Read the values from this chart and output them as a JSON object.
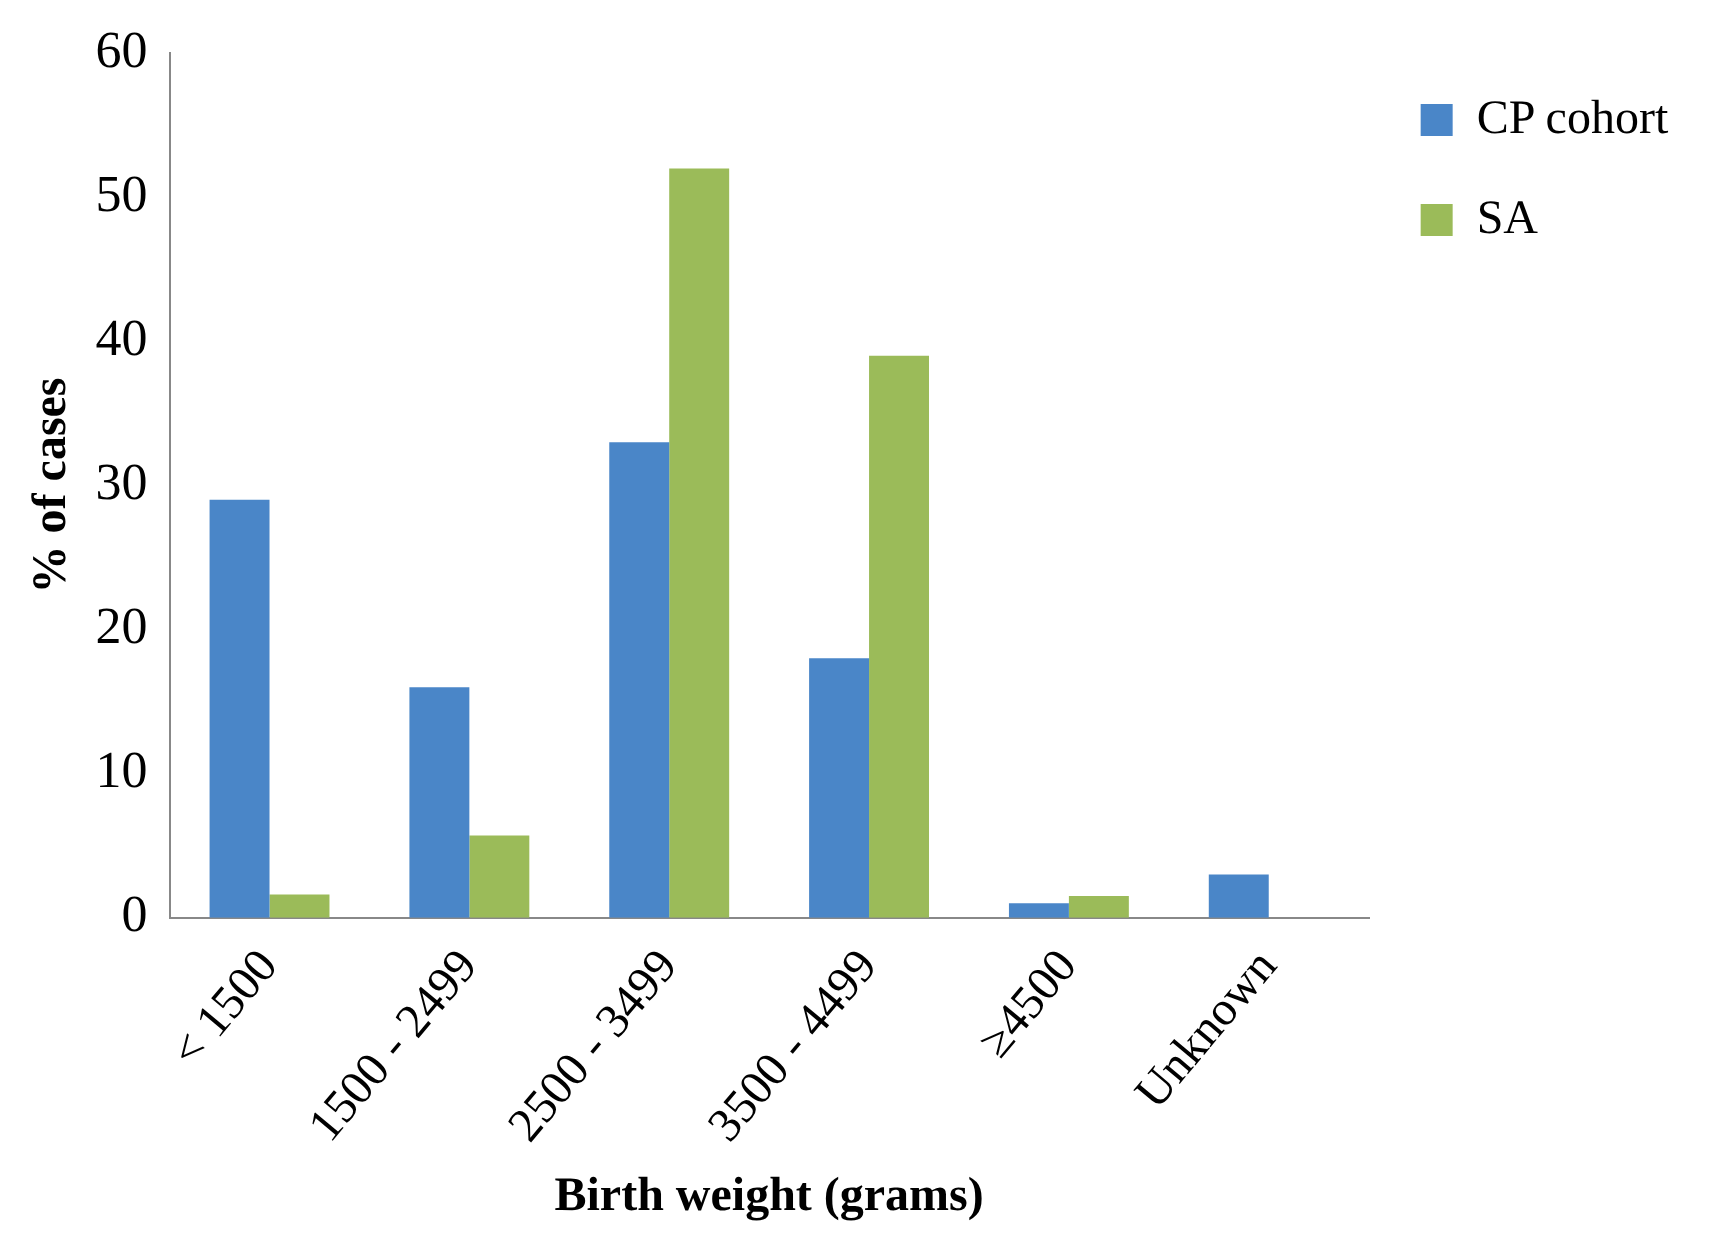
{
  "chart_data": {
    "type": "bar",
    "xlabel": "Birth weight (grams)",
    "ylabel": "% of cases",
    "categories": [
      "< 1500",
      "1500 - 2499",
      "2500 - 3499",
      "3500 - 4499",
      "≥4500",
      "Unknown"
    ],
    "series": [
      {
        "name": "CP cohort",
        "color": "#4a86c8",
        "values": [
          29,
          16,
          33,
          18,
          1,
          3
        ]
      },
      {
        "name": "SA",
        "color": "#9bbb59",
        "values": [
          1.6,
          5.7,
          52,
          39,
          1.5,
          null
        ]
      }
    ],
    "ylim": [
      0,
      60
    ],
    "yticks": [
      0,
      10,
      20,
      30,
      40,
      50,
      60
    ],
    "grid": false,
    "legend": "top right"
  }
}
